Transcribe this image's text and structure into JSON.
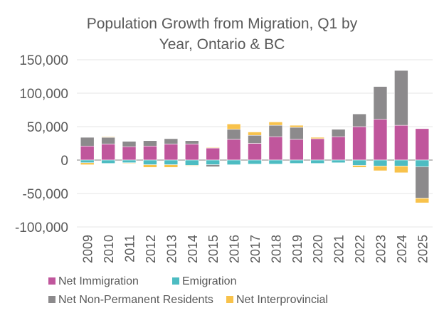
{
  "chart_data": {
    "type": "bar",
    "stacked": true,
    "title_lines": [
      "Population Growth from Migration, Q1 by",
      "Year, Ontario & BC"
    ],
    "categories": [
      "2009",
      "2010",
      "2011",
      "2012",
      "2013",
      "2014",
      "2015",
      "2016",
      "2017",
      "2018",
      "2019",
      "2020",
      "2021",
      "2022",
      "2023",
      "2024",
      "2025"
    ],
    "ylim": [
      -100000,
      150000
    ],
    "yticks": [
      150000,
      100000,
      50000,
      0,
      -50000,
      -100000
    ],
    "ytick_labels": [
      "150,000",
      "100,000",
      "50,000",
      "0",
      "-50,000",
      "-100,000"
    ],
    "grid": true,
    "legend_position": "bottom",
    "series": [
      {
        "name": "Net Immigration",
        "color": "#C0569C",
        "values": [
          21000,
          24000,
          20000,
          21000,
          24000,
          24000,
          18000,
          31000,
          25000,
          35000,
          31000,
          32000,
          35000,
          50000,
          61000,
          52000,
          47000
        ]
      },
      {
        "name": "Emigration",
        "color": "#4DBCC2",
        "values": [
          -4000,
          -5000,
          -4000,
          -7000,
          -7000,
          -8000,
          -7000,
          -7000,
          -6000,
          -6000,
          -5000,
          -5000,
          -4000,
          -8000,
          -9000,
          -9000,
          -10000
        ]
      },
      {
        "name": "Net Non-Permanent Residents",
        "color": "#8C8A8C",
        "values": [
          13000,
          10000,
          8000,
          8000,
          8000,
          5000,
          -3000,
          15000,
          12000,
          17000,
          18000,
          0,
          11000,
          19000,
          49000,
          82000,
          -47000
        ]
      },
      {
        "name": "Net Interprovincial",
        "color": "#F8C24B",
        "values": [
          -3000,
          1000,
          -1000,
          -4000,
          -4000,
          -1000,
          1000,
          8000,
          5000,
          5000,
          3000,
          2000,
          0,
          -3000,
          -7000,
          -10000,
          -7000
        ]
      }
    ]
  }
}
